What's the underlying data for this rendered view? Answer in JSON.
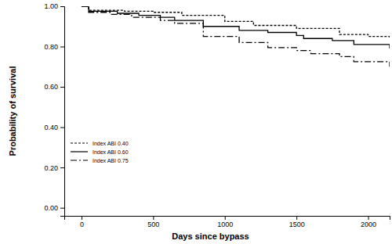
{
  "chart_data": {
    "type": "line",
    "x_label": "Days since bypass",
    "y_label": "Probability of survival",
    "xlim": [
      -120,
      2150
    ],
    "ylim": [
      -0.04,
      1.0
    ],
    "xticks": [
      0,
      500,
      1000,
      1500,
      2000
    ],
    "yticks": [
      {
        "value": 0,
        "label": "0.00"
      },
      {
        "value": 0.2,
        "label": "0.20"
      },
      {
        "value": 0.4,
        "label": "0.40"
      },
      {
        "value": 0.6,
        "label": "0.60"
      },
      {
        "value": 0.8,
        "label": "0.80"
      },
      {
        "value": 1.0,
        "label": "1.00"
      }
    ],
    "grid": false,
    "legend": "left",
    "series": [
      {
        "name": "Index ABI 0.40",
        "color": "#000000",
        "line_style": "dashed",
        "x": [
          0,
          50,
          300,
          500,
          700,
          1000,
          1200,
          1500,
          1800,
          2000,
          2150
        ],
        "values": [
          1.0,
          0.98,
          0.975,
          0.97,
          0.955,
          0.925,
          0.905,
          0.89,
          0.86,
          0.85,
          0.84
        ]
      },
      {
        "name": "Index ABI 0.60",
        "color": "#000000",
        "line_style": "solid",
        "x": [
          0,
          50,
          250,
          400,
          550,
          650,
          850,
          1000,
          1100,
          1300,
          1500,
          1550,
          1750,
          1900,
          2150
        ],
        "values": [
          1.0,
          0.975,
          0.965,
          0.955,
          0.945,
          0.93,
          0.9,
          0.9,
          0.88,
          0.87,
          0.855,
          0.84,
          0.83,
          0.81,
          0.79
        ]
      },
      {
        "name": "Index ABI 0.75",
        "color": "#000000",
        "line_style": "dashdot",
        "x": [
          0,
          50,
          200,
          350,
          550,
          650,
          850,
          1000,
          1100,
          1300,
          1500,
          1600,
          1800,
          1900,
          2150
        ],
        "values": [
          1.0,
          0.97,
          0.96,
          0.945,
          0.93,
          0.915,
          0.85,
          0.85,
          0.82,
          0.795,
          0.78,
          0.765,
          0.75,
          0.725,
          0.7
        ]
      }
    ]
  }
}
